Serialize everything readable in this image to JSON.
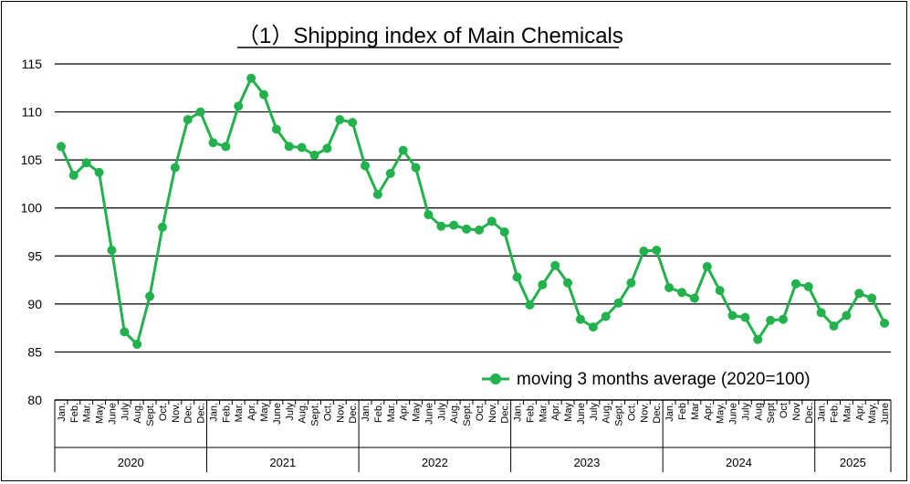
{
  "chart_data": {
    "type": "line",
    "title": "（1）Shipping index of Main Chemicals",
    "xlabel": "",
    "ylabel": "",
    "ylim": [
      80,
      115
    ],
    "yticks": [
      80,
      85,
      90,
      95,
      100,
      105,
      110,
      115
    ],
    "grid": true,
    "legend_position": "bottom-right",
    "series_color": "#22b14c",
    "series": [
      {
        "name": "moving 3 months average (2020=100)",
        "values": [
          106.4,
          103.4,
          104.7,
          103.7,
          95.6,
          87.1,
          85.8,
          90.8,
          98.0,
          104.2,
          109.2,
          110.0,
          106.8,
          106.4,
          110.6,
          113.5,
          111.8,
          108.2,
          106.4,
          106.3,
          105.5,
          106.2,
          109.2,
          108.9,
          104.4,
          101.4,
          103.6,
          106.0,
          104.2,
          99.3,
          98.1,
          98.2,
          97.8,
          97.7,
          98.6,
          97.5,
          92.8,
          89.9,
          92.0,
          94.0,
          92.2,
          88.4,
          87.6,
          88.7,
          90.1,
          92.2,
          95.5,
          95.6,
          91.7,
          91.2,
          90.6,
          93.9,
          91.4,
          88.8,
          88.6,
          86.3,
          88.3,
          88.4,
          92.1,
          91.8,
          89.1,
          87.7,
          88.8,
          91.1,
          90.6,
          88.0
        ]
      }
    ],
    "years": [
      {
        "label": "2020",
        "months": [
          "Jan.",
          "Feb.",
          "Mar.",
          "May.",
          "June",
          "July",
          "Aug.",
          "Sept.",
          "Oct.",
          "Nov.",
          "Dec.",
          "Dec."
        ]
      },
      {
        "label": "2021",
        "months": [
          "Jan.",
          "Feb.",
          "Mar.",
          "Apr.",
          "May",
          "June",
          "July",
          "Aug.",
          "Sept.",
          "Oct.",
          "Nov.",
          "Dec."
        ]
      },
      {
        "label": "2022",
        "months": [
          "Jan.",
          "Feb.",
          "Mar.",
          "Apr.",
          "May",
          "June",
          "July",
          "Aug.",
          "Sept.",
          "Oct.",
          "Nov.",
          "Dec."
        ]
      },
      {
        "label": "2023",
        "months": [
          "Jan.",
          "Feb.",
          "Mar.",
          "Apr.",
          "May",
          "June",
          "July",
          "Aug.",
          "Sept.",
          "Oct.",
          "Nov.",
          "Dec."
        ]
      },
      {
        "label": "2024",
        "months": [
          "Jan.",
          "Feb",
          "Mar",
          "Apr.",
          "May.",
          "June",
          "July",
          "Aug",
          "Sept",
          "Oct",
          "Nov",
          "Dec."
        ]
      },
      {
        "label": "2025",
        "months": [
          "Jan.",
          "Feb.",
          "Mar.",
          "Apr.",
          "May.",
          "June"
        ]
      }
    ]
  }
}
